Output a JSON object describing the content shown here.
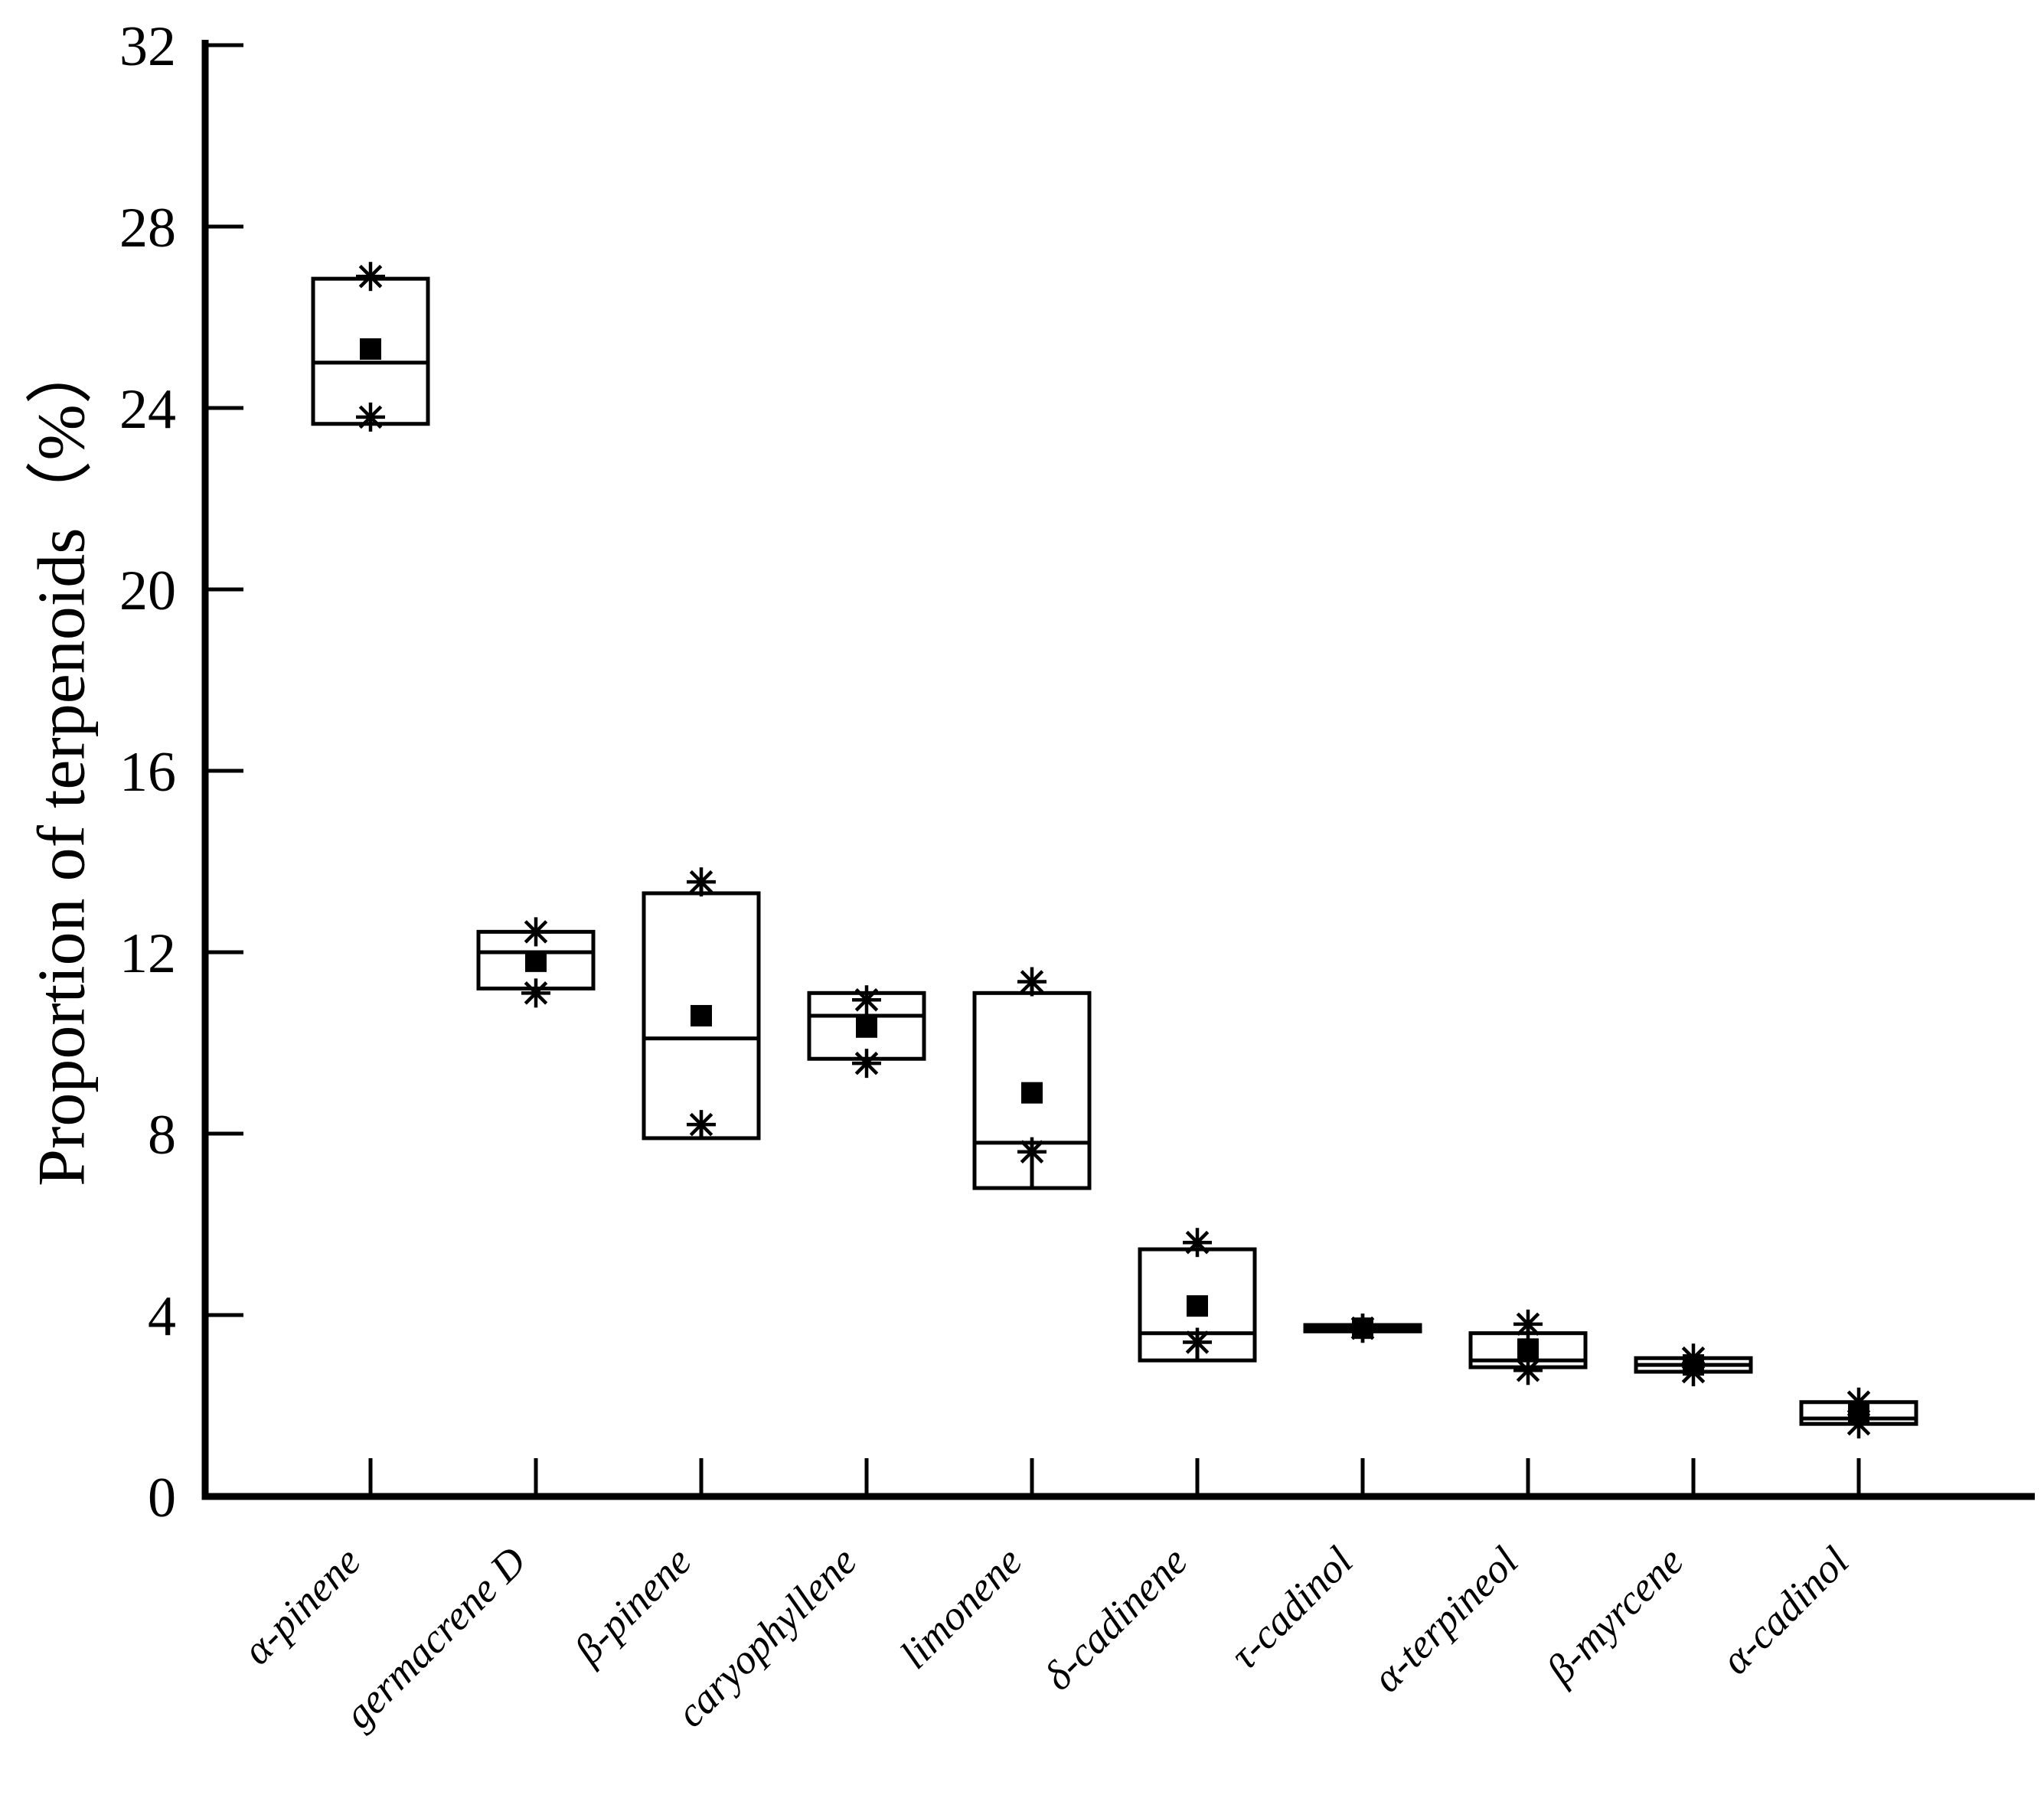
{
  "figure": {
    "background_color": "#ffffff",
    "ink_color": "#000000"
  },
  "chart_data": {
    "type": "box",
    "title": "",
    "xlabel": "",
    "ylabel": "Proportion of terpenoids（%）",
    "ylim": [
      0,
      32
    ],
    "yticks": [
      0,
      4,
      8,
      12,
      16,
      20,
      24,
      28,
      32
    ],
    "grid": false,
    "legend": {
      "shown": false
    },
    "markers": {
      "filled-square": "mean",
      "asterisk-star": "extreme-value",
      "box-inner-line": "median"
    },
    "categories": [
      "α-pinene",
      "germacrene D",
      "β-pinene",
      "caryophyllene",
      "limonene",
      "δ-cadinene",
      "τ-cadinol",
      "α-terpineol",
      "β-myrcene",
      "α-cadinol"
    ],
    "boxes": [
      {
        "name": "α-pinene",
        "q3": 26.85,
        "median": 25.0,
        "q1": 23.65,
        "mean": 25.3,
        "star_high": 26.9,
        "star_low": 23.8,
        "stems": []
      },
      {
        "name": "germacrene D",
        "q3": 12.45,
        "median": 12.0,
        "q1": 11.2,
        "mean": 11.8,
        "star_high": 12.45,
        "star_low": 11.1,
        "stems": []
      },
      {
        "name": "β-pinene",
        "q3": 13.3,
        "median": 10.1,
        "q1": 7.9,
        "mean": 10.6,
        "star_high": 13.55,
        "star_low": 8.2,
        "stems": [
          [
            13.55,
            13.3
          ],
          [
            8.2,
            7.9
          ]
        ]
      },
      {
        "name": "caryophyllene",
        "q3": 11.1,
        "median": 10.6,
        "q1": 9.65,
        "mean": 10.35,
        "star_high": 10.95,
        "star_low": 9.55,
        "stems": []
      },
      {
        "name": "limonene",
        "q3": 11.1,
        "median": 7.8,
        "q1": 6.8,
        "mean": 8.9,
        "star_high": 11.35,
        "star_low": 7.6,
        "stems": [
          [
            11.35,
            11.1
          ],
          [
            7.8,
            6.8
          ]
        ]
      },
      {
        "name": "δ-cadinene",
        "q3": 5.45,
        "median": 3.6,
        "q1": 3.0,
        "mean": 4.2,
        "star_high": 5.6,
        "star_low": 3.4,
        "stems": [
          [
            5.6,
            5.45
          ],
          [
            3.6,
            3.0
          ]
        ]
      },
      {
        "name": "τ-cadinol",
        "q3": 3.78,
        "median": 3.71,
        "q1": 3.64,
        "mean": 3.71,
        "star_high": 3.71,
        "star_low": 3.71,
        "stems": []
      },
      {
        "name": "α-terpineol",
        "q3": 3.6,
        "median": 3.0,
        "q1": 2.85,
        "mean": 3.25,
        "star_high": 3.8,
        "star_low": 2.78,
        "stems": [
          [
            3.8,
            3.6
          ],
          [
            2.85,
            2.78
          ]
        ]
      },
      {
        "name": "β-myrcene",
        "q3": 3.05,
        "median": 2.9,
        "q1": 2.75,
        "mean": 2.9,
        "star_high": 3.05,
        "star_low": 2.75,
        "stems": []
      },
      {
        "name": "α-cadinol",
        "q3": 2.08,
        "median": 1.72,
        "q1": 1.6,
        "mean": 1.85,
        "star_high": 2.08,
        "star_low": 1.6,
        "stems": []
      }
    ]
  }
}
